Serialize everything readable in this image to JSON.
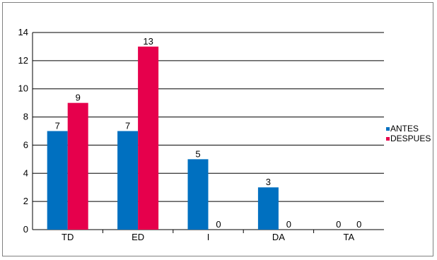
{
  "chart_data": {
    "type": "bar",
    "categories": [
      "TD",
      "ED",
      "I",
      "DA",
      "TA"
    ],
    "series": [
      {
        "name": "ANTES",
        "values": [
          7,
          7,
          5,
          3,
          0
        ],
        "color": "#0070C0"
      },
      {
        "name": "DESPUES",
        "values": [
          9,
          13,
          0,
          0,
          0
        ],
        "color": "#E6004C"
      }
    ],
    "ylim": [
      0,
      14
    ],
    "yticks": [
      0,
      2,
      4,
      6,
      8,
      10,
      12,
      14
    ],
    "grid": true,
    "legend": "right"
  }
}
